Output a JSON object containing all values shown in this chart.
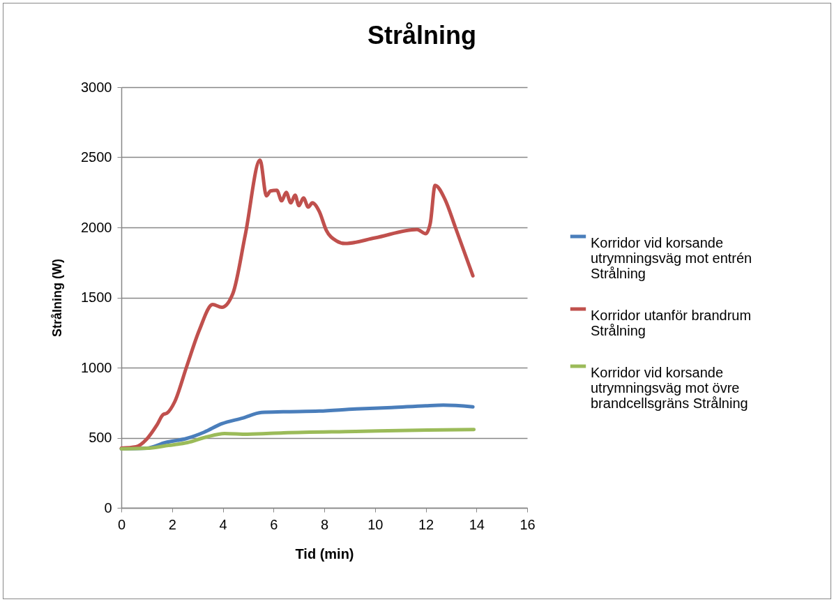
{
  "chart_data": {
    "type": "line",
    "title": "Strålning",
    "xlabel": "Tid (min)",
    "ylabel": "Strålning (W)",
    "xlim": [
      0,
      16
    ],
    "xticks": [
      0,
      2,
      4,
      6,
      8,
      10,
      12,
      14,
      16
    ],
    "ylim": [
      0,
      3000
    ],
    "yticks": [
      0,
      500,
      1000,
      1500,
      2000,
      2500,
      3000
    ],
    "grid": "y",
    "legend": "right",
    "marker": "none",
    "line_style": "solid",
    "series": [
      {
        "name": "Korridor vid korsande utrymningsväg mot entrén Strålning",
        "color": "#4a7ebb",
        "x": [
          0,
          1,
          1.73,
          2.58,
          3.27,
          3.96,
          4.78,
          5.53,
          6.38,
          7.8,
          9.24,
          10.66,
          12,
          12.7,
          13.86
        ],
        "values": [
          420,
          425,
          465,
          495,
          540,
          600,
          640,
          680,
          685,
          690,
          705,
          715,
          728,
          732,
          720
        ]
      },
      {
        "name": "Korridor utanför brandrum Strålning",
        "color": "#c0504d",
        "x": [
          0,
          0.58,
          1,
          1.4,
          1.65,
          1.8,
          2.1,
          2.58,
          3.08,
          3.6,
          3.96,
          4.4,
          4.89,
          5.47,
          5.72,
          5.88,
          6.13,
          6.32,
          6.5,
          6.68,
          6.85,
          7.0,
          7.18,
          7.37,
          7.53,
          7.8,
          8.08,
          8.47,
          8.82,
          10.0,
          11.66,
          12.0,
          12.18,
          12.37,
          12.76,
          13.17,
          13.86
        ],
        "values": [
          425,
          435,
          490,
          590,
          665,
          675,
          755,
          1010,
          1270,
          1450,
          1430,
          1530,
          1950,
          2480,
          2225,
          2260,
          2265,
          2190,
          2250,
          2175,
          2230,
          2155,
          2210,
          2145,
          2175,
          2115,
          1980,
          1905,
          1885,
          1925,
          1985,
          1955,
          2030,
          2300,
          2200,
          2000,
          1655
        ]
      },
      {
        "name": "Korridor vid korsande utrymningsväg mot övre brandcellsgräns Strålning",
        "color": "#9bbb59",
        "x": [
          0,
          1.06,
          1.85,
          2.6,
          3.35,
          4.07,
          4.97,
          6.4,
          9.24,
          12.07,
          13.9
        ],
        "values": [
          420,
          425,
          445,
          465,
          505,
          530,
          525,
          535,
          545,
          555,
          558
        ]
      }
    ]
  }
}
